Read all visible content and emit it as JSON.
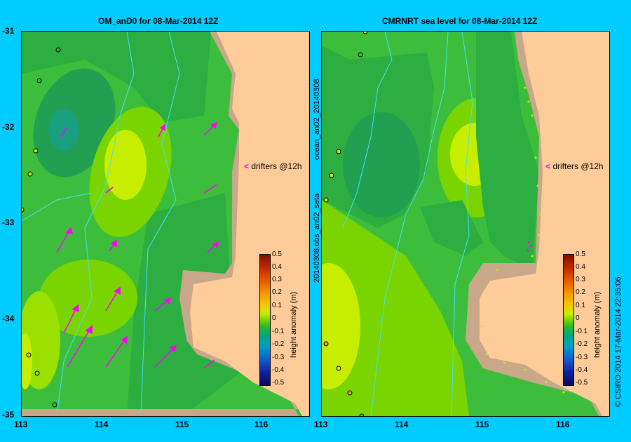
{
  "left_panel": {
    "title": "OM_anD0  for 08-Mar-2014 12Z",
    "drifter_label": "drifters @12h"
  },
  "right_panel": {
    "title": "CMRNRT sea level  for 08-Mar-2014 12Z",
    "drifter_label": "drifters @12h",
    "side_label_top": "ocean_an02_20140308",
    "side_label_bottom": "20140308.obs_an02_seta"
  },
  "latitude_ticks": [
    "-31",
    "-32",
    "-33",
    "-34",
    "-35"
  ],
  "longitude_ticks": [
    "113",
    "114",
    "115",
    "116"
  ],
  "colorbar": {
    "ticks": [
      "0.5",
      "0.4",
      "0.3",
      "0.2",
      "0.1",
      "0",
      "-0.1",
      "-0.2",
      "-0.3",
      "-0.4",
      "-0.5"
    ],
    "label": "height anomaly (m)"
  },
  "credit": "© CSIRO 2014   17-Mar-2014 22:35:06",
  "colors": {
    "background": "#00ccff",
    "land": "#ffcc99",
    "shelf": "#c8a888",
    "drifter_arrow": "#ff00ff"
  }
}
